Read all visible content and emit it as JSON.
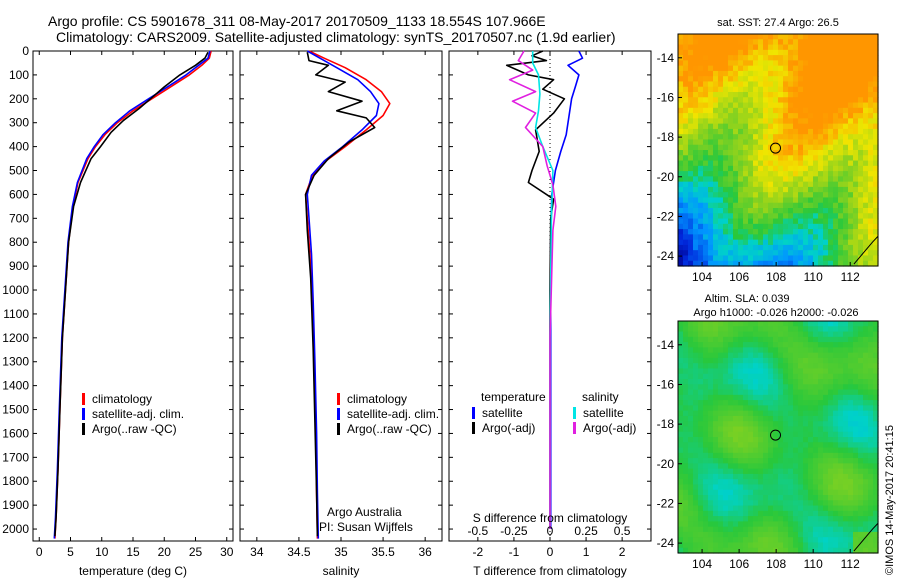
{
  "figure": {
    "title_line1": "Argo profile: CS 5901678_311 08-May-2017 20170509_1133 18.554S 107.966E",
    "title_line2": "Climatology: CARS2009. Satellite-adjusted climatology: synTS_20170507.nc (1.9d earlier)",
    "stamp": "©IMOS 14-May-2017 20:41:15",
    "colors": {
      "red": "#ff0000",
      "blue": "#0000ff",
      "black": "#000000",
      "cyan": "#00e5e5",
      "magenta": "#e020e0"
    }
  },
  "chart_data": [
    {
      "id": "temperature",
      "type": "line",
      "xlabel": "temperature (deg C)",
      "ylabel": "",
      "xlim": [
        -1,
        31
      ],
      "ylim": [
        0,
        2050
      ],
      "xticks": [
        "0",
        "5",
        "10",
        "15",
        "20",
        "25",
        "30"
      ],
      "xtick_values": [
        0,
        5,
        10,
        15,
        20,
        25,
        30
      ],
      "yticks": [
        "0",
        "100",
        "200",
        "300",
        "400",
        "500",
        "600",
        "700",
        "800",
        "900",
        "1000",
        "1100",
        "1200",
        "1300",
        "1400",
        "1500",
        "1600",
        "1700",
        "1800",
        "1900",
        "2000"
      ],
      "ytick_values": [
        0,
        100,
        200,
        300,
        400,
        500,
        600,
        700,
        800,
        900,
        1000,
        1100,
        1200,
        1300,
        1400,
        1500,
        1600,
        1700,
        1800,
        1900,
        2000
      ],
      "legend": [
        "climatology",
        "satellite-adj. clim.",
        "Argo(..raw -QC)"
      ],
      "series": [
        {
          "name": "climatology",
          "color": "red",
          "x": [
            27.5,
            27.2,
            26,
            24,
            21,
            18,
            15,
            12.5,
            10.5,
            9,
            7.8,
            6.2,
            5.4,
            4.7,
            4.2,
            3.7,
            3.3,
            3,
            2.7,
            2.5
          ],
          "y": [
            0,
            30,
            60,
            100,
            150,
            200,
            250,
            300,
            350,
            400,
            450,
            550,
            650,
            800,
            1000,
            1200,
            1500,
            1750,
            1950,
            2040
          ]
        },
        {
          "name": "satellite-adj. clim.",
          "color": "blue",
          "x": [
            27.3,
            27,
            25.5,
            23.5,
            20.5,
            17.5,
            14.5,
            12.2,
            10.2,
            8.8,
            7.6,
            6.1,
            5.3,
            4.6,
            4.1,
            3.6,
            3.2,
            2.9,
            2.6,
            2.4
          ],
          "y": [
            0,
            30,
            60,
            100,
            150,
            200,
            250,
            300,
            350,
            400,
            450,
            550,
            650,
            800,
            1000,
            1200,
            1500,
            1750,
            1950,
            2040
          ]
        },
        {
          "name": "Argo(..raw -QC)",
          "color": "black",
          "x": [
            27,
            26.5,
            25,
            22.5,
            20,
            17.8,
            16,
            13.5,
            11.5,
            9.8,
            8.3,
            6.6,
            5.5,
            4.7,
            4.2,
            3.7,
            3.3,
            3,
            2.7,
            2.5
          ],
          "y": [
            5,
            30,
            60,
            100,
            150,
            200,
            240,
            290,
            340,
            400,
            450,
            550,
            650,
            800,
            1000,
            1200,
            1500,
            1750,
            1950,
            2030
          ]
        }
      ]
    },
    {
      "id": "salinity",
      "type": "line",
      "xlabel": "salinity",
      "ylabel": "",
      "xlim": [
        33.8,
        36.2
      ],
      "ylim": [
        0,
        2050
      ],
      "xticks": [
        "34",
        "34.5",
        "35",
        "35.5",
        "36"
      ],
      "xtick_values": [
        34,
        34.5,
        35,
        35.5,
        36
      ],
      "legend": [
        "climatology",
        "satellite-adj. clim.",
        "Argo(..raw -QC)"
      ],
      "annotation": [
        "Argo Australia",
        "PI: Susan Wijffels"
      ],
      "series": [
        {
          "name": "climatology",
          "color": "red",
          "x": [
            34.62,
            34.8,
            35.05,
            35.3,
            35.48,
            35.58,
            35.5,
            35.3,
            35.05,
            34.82,
            34.66,
            34.58,
            34.6,
            34.63,
            34.66,
            34.68,
            34.7,
            34.71,
            34.72
          ],
          "y": [
            0,
            30,
            70,
            120,
            170,
            220,
            270,
            330,
            400,
            460,
            520,
            600,
            700,
            850,
            1050,
            1300,
            1600,
            1850,
            2040
          ]
        },
        {
          "name": "satellite-adj. clim.",
          "color": "blue",
          "x": [
            34.6,
            34.75,
            34.95,
            35.2,
            35.35,
            35.45,
            35.42,
            35.25,
            35.02,
            34.8,
            34.65,
            34.6,
            34.62,
            34.65,
            34.67,
            34.69,
            34.71,
            34.72,
            34.73
          ],
          "y": [
            0,
            30,
            70,
            120,
            170,
            220,
            270,
            330,
            400,
            460,
            520,
            600,
            700,
            850,
            1050,
            1300,
            1600,
            1850,
            2040
          ]
        },
        {
          "name": "Argo(..raw -QC)",
          "color": "black",
          "x": [
            34.6,
            34.62,
            34.85,
            34.7,
            35.05,
            34.85,
            35.25,
            34.95,
            35.3,
            35.4,
            35.1,
            34.85,
            34.68,
            34.58,
            34.6,
            34.64,
            34.67,
            34.69,
            34.71,
            34.72
          ],
          "y": [
            5,
            40,
            60,
            100,
            130,
            170,
            210,
            250,
            280,
            320,
            380,
            450,
            520,
            600,
            750,
            950,
            1250,
            1550,
            1850,
            2030
          ]
        }
      ]
    },
    {
      "id": "differences",
      "type": "line",
      "xlabel": "T difference from climatology",
      "xlabel_top": "S difference from climatology",
      "xlim": [
        -2.8,
        2.8
      ],
      "ylim": [
        0,
        2050
      ],
      "xticks": [
        "-2",
        "-1",
        "0",
        "1",
        "2"
      ],
      "xtick_values": [
        -2,
        -1,
        0,
        1,
        2
      ],
      "sticks": [
        "-0.5",
        "-0.25",
        "0",
        "0.25",
        "0.5"
      ],
      "stick_values": [
        -0.5,
        -0.25,
        0,
        0.25,
        0.5
      ],
      "legend_temperature_title": "temperature",
      "legend_salinity_title": "salinity",
      "legend": [
        "satellite",
        "Argo(-adj)",
        "satellite",
        "Argo(-adj)"
      ],
      "series": [
        {
          "name": "temperature satellite",
          "color": "blue",
          "x": [
            0.8,
            0.9,
            0.5,
            0.8,
            0.7,
            0.6,
            0.55,
            0.5,
            0.45,
            0.3,
            0.15,
            0.05,
            0.02,
            0.02,
            0.02,
            0.02
          ],
          "y": [
            0,
            30,
            60,
            100,
            150,
            200,
            250,
            300,
            350,
            420,
            500,
            600,
            800,
            1200,
            1600,
            2000
          ]
        },
        {
          "name": "temperature Argo(-adj)",
          "color": "black",
          "x": [
            -0.2,
            -0.5,
            -0.1,
            -1.2,
            -0.6,
            0.1,
            -0.2,
            0.4,
            0.1,
            -0.4,
            -0.3,
            -0.5,
            -0.6,
            0.1,
            0.02,
            0.0,
            0.0,
            0.0
          ],
          "y": [
            0,
            20,
            40,
            60,
            100,
            120,
            160,
            200,
            260,
            330,
            420,
            500,
            550,
            620,
            700,
            1000,
            1500,
            2000
          ]
        },
        {
          "name": "salinity satellite",
          "color": "cyan",
          "x": [
            -0.12,
            -0.12,
            -0.08,
            -0.07,
            -0.08,
            -0.1,
            -0.05,
            0.02,
            0.01,
            0.0,
            0.0
          ],
          "y": [
            0,
            50,
            100,
            180,
            250,
            320,
            400,
            500,
            700,
            1200,
            2000
          ]
        },
        {
          "name": "salinity Argo(-adj)",
          "color": "magenta",
          "x": [
            -0.18,
            -0.22,
            -0.12,
            -0.28,
            -0.1,
            -0.26,
            -0.1,
            -0.17,
            -0.05,
            -0.02,
            0.02,
            0.04,
            0.02,
            0.0,
            0.0
          ],
          "y": [
            0,
            40,
            80,
            120,
            170,
            210,
            260,
            320,
            400,
            480,
            560,
            650,
            750,
            1200,
            2000
          ]
        }
      ]
    },
    {
      "id": "sst_map",
      "type": "heatmap",
      "title": "sat. SST: 27.4 Argo: 26.5",
      "xlim": [
        102.7,
        113.5
      ],
      "ylim": [
        -24.5,
        -12.8
      ],
      "xticks": [
        "104",
        "106",
        "108",
        "110",
        "112"
      ],
      "xtick_values": [
        104,
        106,
        108,
        110,
        112
      ],
      "yticks": [
        "-14",
        "-16",
        "-18",
        "-20",
        "-22",
        "-24"
      ],
      "ytick_values": [
        -14,
        -16,
        -18,
        -20,
        -22,
        -24
      ],
      "marker": {
        "lon": 107.966,
        "lat": -18.554
      }
    },
    {
      "id": "sla_map",
      "type": "heatmap",
      "title": "Altim. SLA: 0.039",
      "subtitle": "Argo h1000: -0.026 h2000: -0.026",
      "xlim": [
        102.7,
        113.5
      ],
      "ylim": [
        -24.5,
        -12.8
      ],
      "xticks": [
        "104",
        "106",
        "108",
        "110",
        "112"
      ],
      "xtick_values": [
        104,
        106,
        108,
        110,
        112
      ],
      "yticks": [
        "-14",
        "-16",
        "-18",
        "-20",
        "-22",
        "-24"
      ],
      "ytick_values": [
        -14,
        -16,
        -18,
        -20,
        -22,
        -24
      ],
      "marker": {
        "lon": 107.966,
        "lat": -18.554
      }
    }
  ]
}
